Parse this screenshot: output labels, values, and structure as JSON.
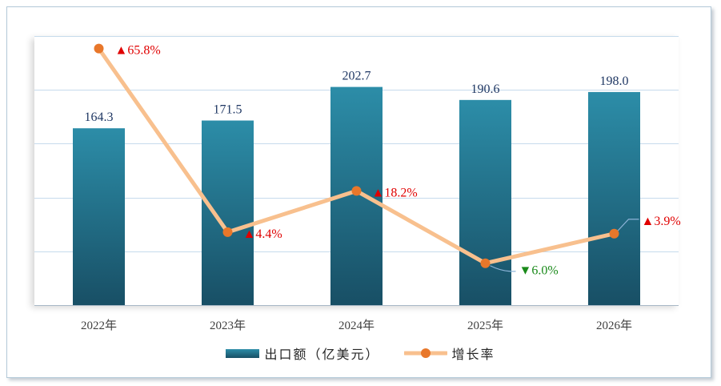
{
  "chart_data": {
    "type": "bar",
    "title": "",
    "xlabel": "",
    "ylabel": "",
    "categories": [
      "2022年",
      "2023年",
      "2024年",
      "2025年",
      "2026年"
    ],
    "series": [
      {
        "name": "出口额（亿美元）",
        "type": "bar",
        "axis": "primary",
        "values": [
          164.3,
          171.5,
          202.7,
          190.6,
          198.0
        ],
        "labels": [
          "164.3",
          "171.5",
          "202.7",
          "190.6",
          "198.0"
        ]
      },
      {
        "name": "增长率",
        "type": "line",
        "axis": "secondary",
        "values": [
          65.8,
          4.4,
          18.2,
          -6.0,
          3.9
        ],
        "labels": [
          "▲65.8%",
          "▲4.4%",
          "▲18.2%",
          "▼6.0%",
          "▲3.9%"
        ]
      }
    ],
    "ylim": [
      0,
      250
    ],
    "y2lim": [
      -20,
      70
    ],
    "grid": true,
    "legend": "bottom-center"
  },
  "colors": {
    "bar_top": "#2c8da8",
    "bar_bottom": "#184f65",
    "line": "#f8c08e",
    "marker": "#e8772a",
    "value_label": "#1f3763",
    "growth_up": "#e00000",
    "growth_down": "#1a8a1a",
    "grid": "#c6dbec",
    "axis": "#a8b8c6",
    "axis_label": "#404040",
    "leader": "#8db4d8"
  }
}
